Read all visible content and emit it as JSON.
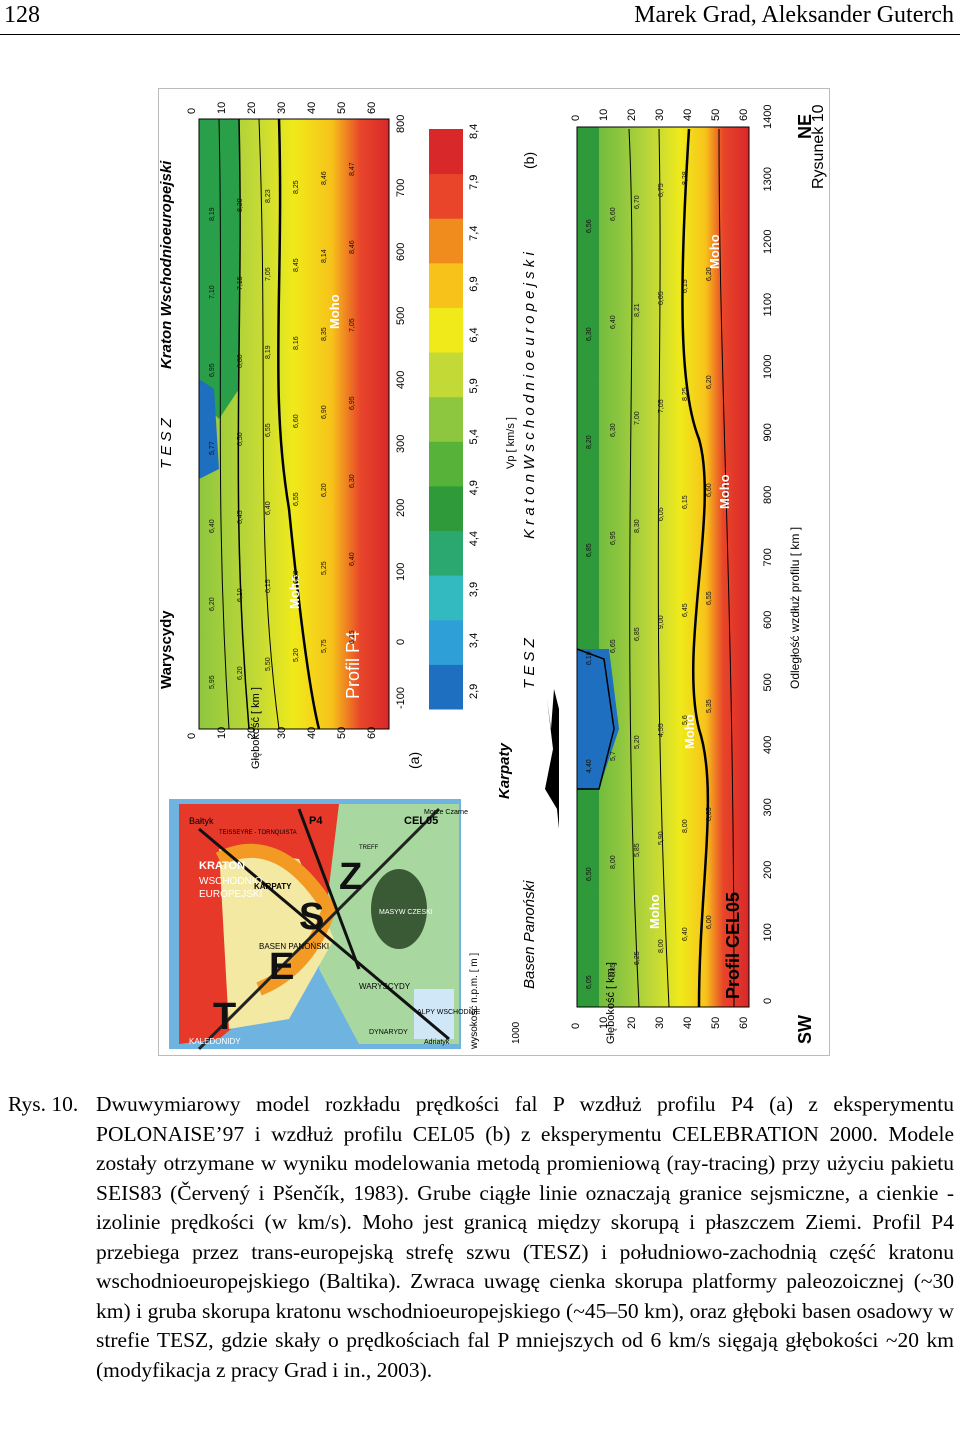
{
  "header": {
    "page_number": "128",
    "authors": "Marek Grad, Aleksander Guterch"
  },
  "figure": {
    "panel_a": {
      "title": "Profil P4",
      "label": "(a)",
      "regions": [
        "Waryscydy",
        "T E S Z",
        "Kraton Wschodnioeuropejski"
      ],
      "depth_label": "Głębokość [ km ]",
      "moho": "Moho",
      "depth_ticks": [
        "0",
        "10",
        "20",
        "30",
        "40",
        "50",
        "60"
      ],
      "dist_ticks": [
        "-100",
        "0",
        "100",
        "200",
        "300",
        "400",
        "500",
        "600",
        "700",
        "800"
      ],
      "velocity_labels": [
        "5,95",
        "6,20",
        "5,50",
        "5,20",
        "5,75",
        "6,15",
        "6,20",
        "6,10",
        "6,15",
        "6,28",
        "5,25",
        "6,40",
        "6,40",
        "6,45",
        "6,40",
        "6,55",
        "6,20",
        "6,30",
        "5,77",
        "6,50",
        "6,55",
        "6,60",
        "6,90",
        "6,95",
        "6,95",
        "6,80",
        "8,19",
        "8,16",
        "8,35",
        "7,05",
        "7,10",
        "7,15",
        "7,05",
        "8,45",
        "8,14",
        "8,46",
        "8,19",
        "8,20",
        "8,23",
        "8,25",
        "8,46",
        "8,47"
      ]
    },
    "velocity_scale": {
      "label": "Vp [ km/s ]",
      "ticks": [
        "2,9",
        "3,4",
        "3,9",
        "4,4",
        "4,9",
        "5,4",
        "5,9",
        "6,4",
        "6,9",
        "7,4",
        "7,9",
        "8,4"
      ],
      "colors": [
        "#1f6fc0",
        "#2f9fd8",
        "#33b9c0",
        "#2aa870",
        "#2f9a3a",
        "#57b23a",
        "#8dc63f",
        "#c2d936",
        "#f0ea1a",
        "#f7c21a",
        "#f08c1e",
        "#e8452a",
        "#d8282a"
      ]
    },
    "panel_b": {
      "title": "Profil CEL05",
      "label": "(b)",
      "regions": [
        "Basen Panoński",
        "Karpaty",
        "T E S Z",
        "K r a t o n   W s c h o d n i o e u r o p e j s k i"
      ],
      "elevation_label": "wysokość n.p.m. [ m ]",
      "elevation_tick": "1000",
      "depth_label": "Głębokość [ km ]",
      "distance_label": "Odległość wzdłuż profilu [ km ]",
      "moho": "Moho",
      "sw": "SW",
      "ne": "NE",
      "depth_ticks": [
        "0",
        "10",
        "20",
        "30",
        "40",
        "50",
        "60"
      ],
      "dist_ticks": [
        "0",
        "100",
        "200",
        "300",
        "400",
        "500",
        "600",
        "700",
        "800",
        "900",
        "1000",
        "1100",
        "1200",
        "1300",
        "1400"
      ],
      "velocity_labels": [
        "6,05",
        "5,85",
        "6,25",
        "8,00",
        "6,40",
        "6,00",
        "6,50",
        "8,00",
        "5,85",
        "5,90",
        "8,00",
        "8,05",
        "4,40",
        "5,7",
        "5,20",
        "4,55",
        "5,6",
        "5,35",
        "6,10",
        "6,65",
        "6,85",
        "9,00",
        "6,45",
        "6,55",
        "6,85",
        "6,95",
        "8,30",
        "6,05",
        "6,15",
        "6,60",
        "8,20",
        "6,30",
        "7,00",
        "7,05",
        "8,25",
        "6,20",
        "6,30",
        "6,40",
        "8,21",
        "6,05",
        "6,15",
        "6,20",
        "6,56",
        "6,60",
        "6,70",
        "6,75",
        "8,28"
      ]
    },
    "map": {
      "labels": [
        "Bałtyk",
        "P4",
        "KRATON",
        "WSCHODNIO -",
        "EUROPEJSKI",
        "CEL05",
        "T",
        "E",
        "S",
        "Z",
        "KALEDONIDY",
        "WARYSCYDY",
        "MASYW CZESKI",
        "ALPY WSCHODNIE",
        "KARPATY",
        "BASEN PANOŃSKI",
        "DYNARYDY",
        "Adriatyk",
        "Morze Czarne",
        "TEISSEYRE - TORNQUISTA",
        "TREFF"
      ]
    },
    "running_title": "Rysunek 10"
  },
  "caption": {
    "label": "Rys. 10.",
    "text": "Dwuwymiarowy model rozkładu prędkości fal P wzdłuż profilu P4 (a) z eksperymentu POLONAISE’97 i wzdłuż profilu CEL05 (b) z eksperymentu CELEBRATION 2000. Modele zostały otrzymane w wyniku modelowania metodą promieniową (ray-tracing) przy użyciu pakietu SEIS83 (Červený i Pšenčík, 1983). Grube ciągłe linie oznaczają granice sejsmiczne, a cienkie - izolinie prędkości (w km/s). Moho jest granicą między skorupą i płaszczem Ziemi. Profil P4 przebiega przez trans-europejską strefę szwu (TESZ) i południowo-zachodnią część kratonu wschodnioeuropejskiego (Baltika). Zwraca uwagę cienka skorupa platformy paleozoicznej (~30 km) i gruba skorupa kratonu wschodnioeuropejskiego (~45–50 km), oraz głęboki basen osadowy w strefie TESZ, gdzie skały o prędkościach fal P mniejszych od 6 km/s sięgają głębokości ~20 km (modyfikacja z pracy Grad i in., 2003)."
  }
}
